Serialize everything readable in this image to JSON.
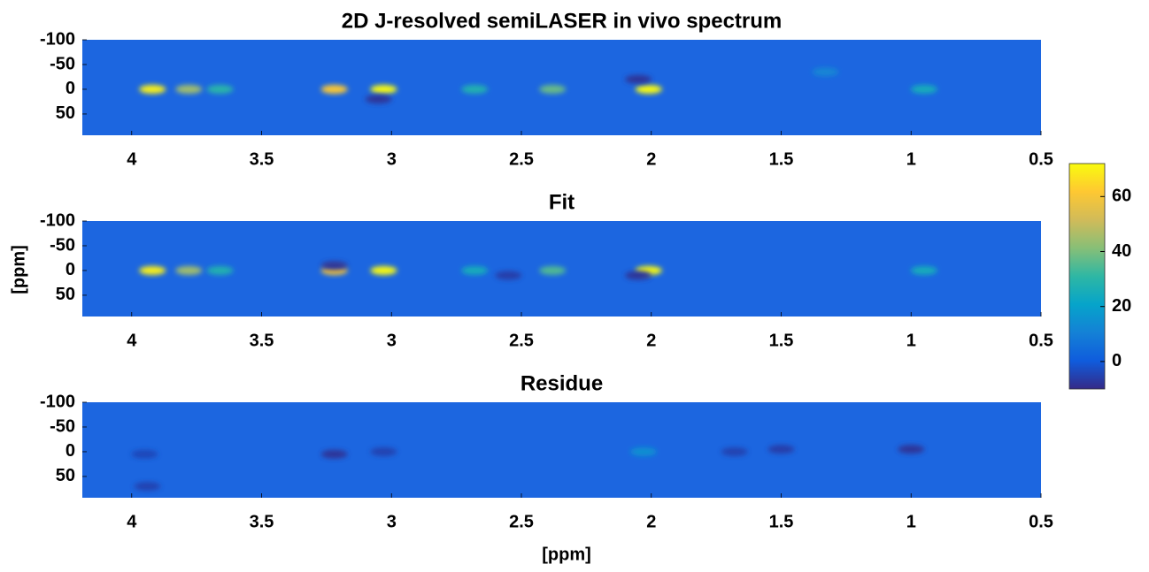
{
  "chart_data": {
    "type": "heatmap",
    "xlabel": "[ppm]",
    "ylabel": "[ppm]",
    "xlim": [
      4.19,
      0.5
    ],
    "xticks": [
      4,
      3.5,
      3,
      2.5,
      2,
      1.5,
      1,
      0.5
    ],
    "ylim": [
      -100,
      93
    ],
    "yticks": [
      -100,
      -50,
      0,
      50
    ],
    "clim": [
      -10,
      72
    ],
    "cticks": [
      0,
      20,
      40,
      60
    ],
    "panels": [
      {
        "title": "2D J-resolved semiLASER in vivo spectrum",
        "x": [
          3.92,
          3.78,
          3.66,
          3.22,
          3.03,
          2.68,
          2.38,
          2.01,
          1.33,
          0.95,
          3.05,
          2.05
        ],
        "y": [
          0,
          0,
          0,
          0,
          0,
          0,
          0,
          0,
          -35,
          0,
          20,
          -20
        ],
        "values": [
          70,
          45,
          30,
          62,
          72,
          28,
          38,
          72,
          12,
          25,
          -8,
          -8
        ]
      },
      {
        "title": "Fit",
        "x": [
          3.92,
          3.78,
          3.66,
          3.22,
          3.03,
          2.68,
          2.38,
          2.01,
          0.95,
          3.22,
          2.05,
          2.55
        ],
        "y": [
          0,
          0,
          0,
          0,
          0,
          0,
          0,
          0,
          0,
          -10,
          10,
          10
        ],
        "values": [
          70,
          45,
          28,
          60,
          72,
          25,
          35,
          72,
          25,
          -8,
          -8,
          -6
        ]
      },
      {
        "title": "Residue",
        "x": [
          3.95,
          3.22,
          3.03,
          2.03,
          1.68,
          1.5,
          1.0,
          3.94
        ],
        "y": [
          5,
          5,
          0,
          0,
          0,
          -5,
          -5,
          70
        ],
        "values": [
          -4,
          -8,
          -5,
          15,
          -5,
          -6,
          -8,
          -5
        ]
      }
    ]
  }
}
